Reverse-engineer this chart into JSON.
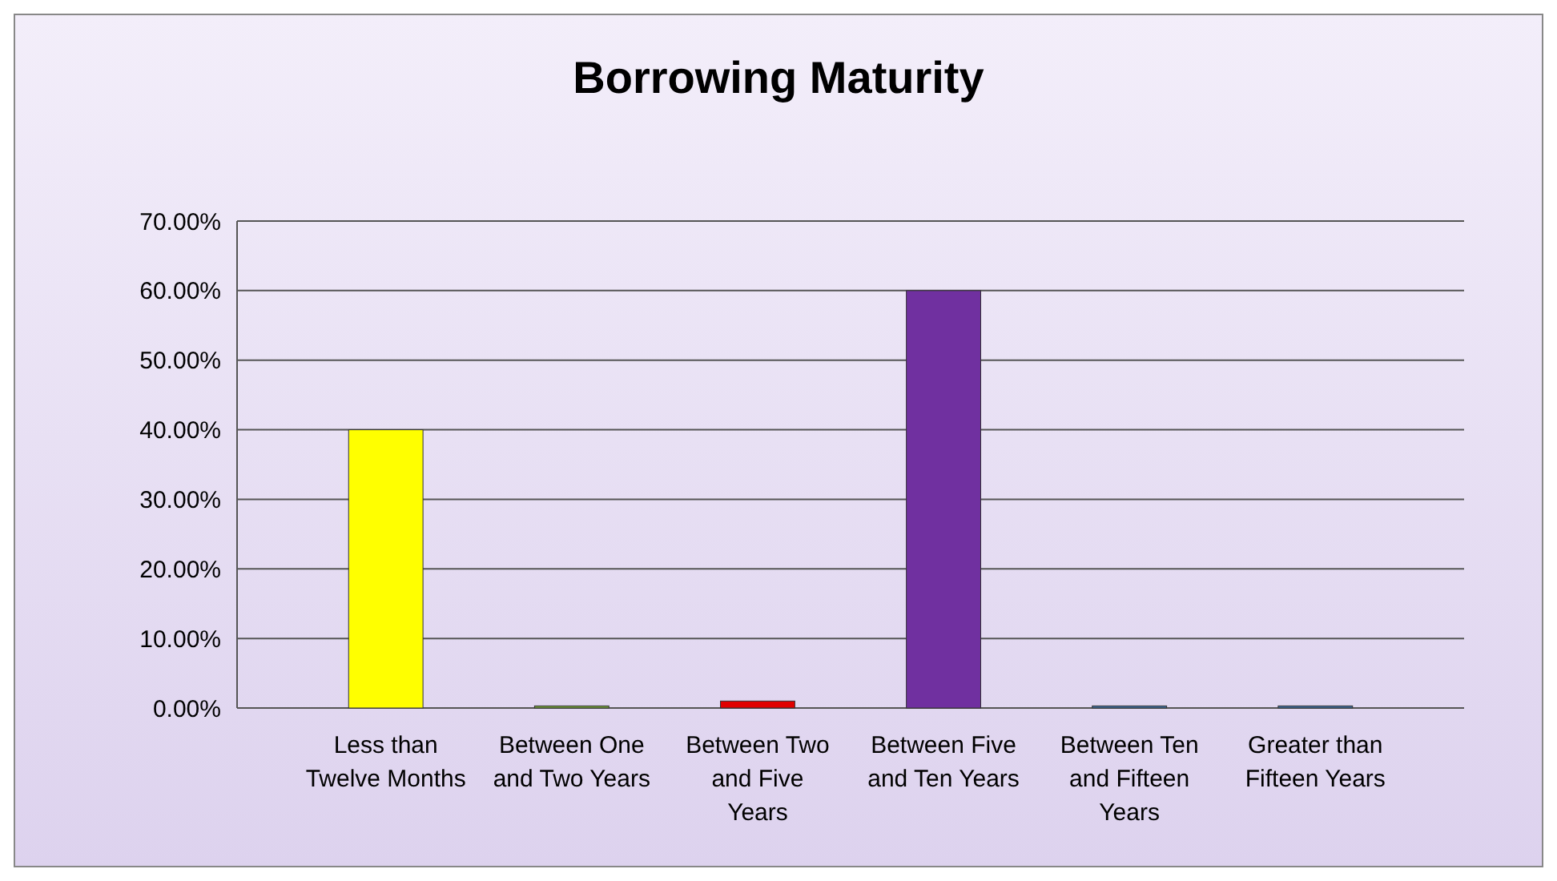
{
  "chart_data": {
    "type": "bar",
    "title": "Borrowing Maturity",
    "categories": [
      "Less than Twelve Months",
      "Between One and Two Years",
      "Between Two and Five Years",
      "Between Five and Ten Years",
      "Between Ten and Fifteen Years",
      "Greater than Fifteen Years"
    ],
    "values": [
      40,
      0.3,
      1,
      60,
      0.3,
      0.3
    ],
    "colors": [
      "#ffff00",
      "#77a33a",
      "#e00000",
      "#7030a0",
      "#3f6f9f",
      "#3f6f9f"
    ],
    "ylim": [
      0,
      70
    ],
    "yticks": [
      {
        "value": 0,
        "label": "0.00%"
      },
      {
        "value": 10,
        "label": "10.00%"
      },
      {
        "value": 20,
        "label": "20.00%"
      },
      {
        "value": 30,
        "label": "30.00%"
      },
      {
        "value": 40,
        "label": "40.00%"
      },
      {
        "value": 50,
        "label": "50.00%"
      },
      {
        "value": 60,
        "label": "60.00%"
      },
      {
        "value": 70,
        "label": "70.00%"
      }
    ],
    "grid": "y"
  }
}
